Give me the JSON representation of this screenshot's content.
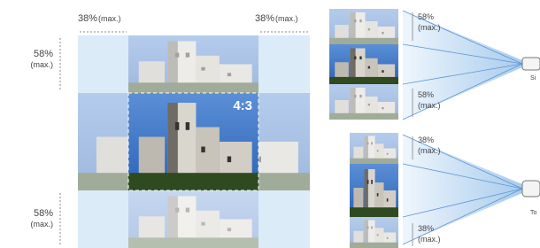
{
  "left_diagram": {
    "horizontal_shift": [
      {
        "percent": "38%",
        "note": "(max.)"
      },
      {
        "percent": "38%",
        "note": "(max.)"
      }
    ],
    "vertical_shift": [
      {
        "percent": "58%",
        "note": "(max.)"
      },
      {
        "percent": "58%",
        "note": "(max.)"
      }
    ],
    "aspect": "4:3"
  },
  "right_diagram": {
    "vertical_panel": {
      "labels": [
        {
          "percent": "58%",
          "note": "(max.)"
        },
        {
          "percent": "58%",
          "note": "(max.)"
        }
      ],
      "projector": "Si"
    },
    "horizontal_panel": {
      "labels": [
        {
          "percent": "38%",
          "note": "(max.)"
        },
        {
          "percent": "38%",
          "note": "(max.)"
        }
      ],
      "projector": "To"
    }
  }
}
